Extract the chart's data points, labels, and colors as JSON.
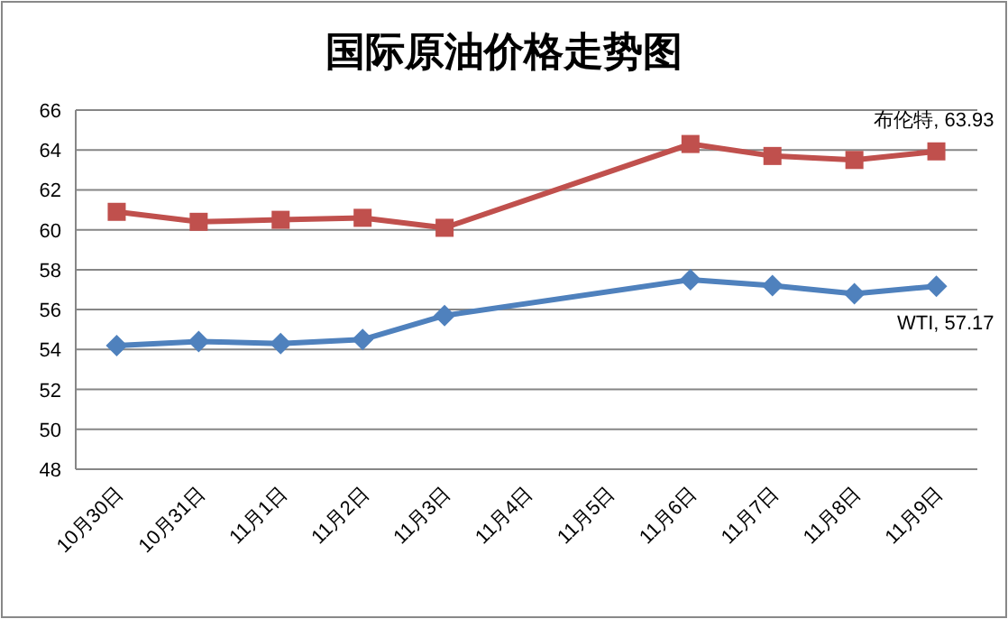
{
  "chart_data": {
    "type": "line",
    "title": "国际原油价格走势图",
    "categories": [
      "10月30日",
      "10月31日",
      "11月1日",
      "11月2日",
      "11月3日",
      "11月4日",
      "11月5日",
      "11月6日",
      "11月7日",
      "11月8日",
      "11月9日"
    ],
    "series": [
      {
        "color": "#c0504d",
        "marker": "square",
        "values": [
          60.9,
          60.4,
          60.5,
          60.6,
          60.1,
          null,
          null,
          64.3,
          63.7,
          63.5,
          63.93
        ]
      },
      {
        "color": "#4f81bd",
        "marker": "diamond",
        "values": [
          54.2,
          54.4,
          54.3,
          54.5,
          55.7,
          null,
          null,
          57.5,
          57.2,
          56.8,
          57.17
        ]
      }
    ],
    "annotations": [
      {
        "text": "布伦特, 63.93",
        "x": "11月9日",
        "y": 63.93
      },
      {
        "text": "WTI, 57.17",
        "x": "11月9日",
        "y": 57.17
      }
    ],
    "ylim": [
      48,
      66
    ],
    "yticks": [
      48,
      50,
      52,
      54,
      56,
      58,
      60,
      62,
      64,
      66
    ],
    "grid": "y",
    "line_style": "solid"
  }
}
